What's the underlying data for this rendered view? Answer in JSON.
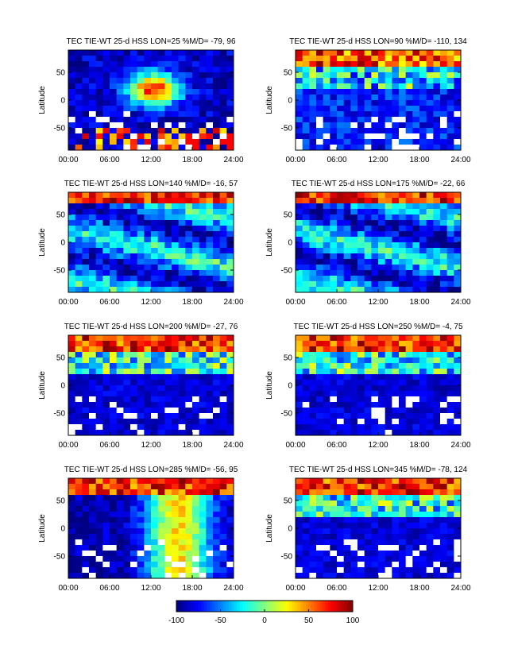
{
  "chart_data": {
    "type": "heatmap",
    "panels": [
      {
        "title": "TEC TIE-WT 25-d HSS LON=25 %M/D=  -79,  96",
        "ylabel": "Latitude",
        "xlabel": "",
        "pattern": "equatorial_crest_positive",
        "x_ticks": [
          "00:00",
          "06:00",
          "12:00",
          "18:00",
          "24:00"
        ],
        "y_ticks": [
          "50",
          "0",
          "-50"
        ],
        "xlim": [
          0,
          24
        ],
        "ylim": [
          -90,
          90
        ]
      },
      {
        "title": "TEC TIE-WT 25-d HSS LON=90 %M/D= -110,  134",
        "ylabel": "Latitude",
        "xlabel": "",
        "pattern": "mixed_high_north",
        "x_ticks": [
          "00:00",
          "06:00",
          "12:00",
          "18:00",
          "24:00"
        ],
        "y_ticks": [
          "50",
          "0",
          "-50"
        ],
        "xlim": [
          0,
          24
        ],
        "ylim": [
          -90,
          90
        ]
      },
      {
        "title": "TEC TIE-WT 25-d HSS LON=140 %M/D=  -16,  57",
        "ylabel": "Latitude",
        "xlabel": "",
        "pattern": "banded_mild",
        "x_ticks": [
          "00:00",
          "06:00",
          "12:00",
          "18:00",
          "24:00"
        ],
        "y_ticks": [
          "50",
          "0",
          "-50"
        ],
        "xlim": [
          0,
          24
        ],
        "ylim": [
          -90,
          90
        ]
      },
      {
        "title": "TEC TIE-WT 25-d HSS LON=175 %M/D=  -22,  66",
        "ylabel": "Latitude",
        "xlabel": "",
        "pattern": "banded_mild",
        "x_ticks": [
          "00:00",
          "06:00",
          "12:00",
          "18:00",
          "24:00"
        ],
        "y_ticks": [
          "50",
          "0",
          "-50"
        ],
        "xlim": [
          0,
          24
        ],
        "ylim": [
          -90,
          90
        ]
      },
      {
        "title": "TEC TIE-WT 25-d HSS LON=200 %M/D=  -27,  76",
        "ylabel": "Latitude",
        "xlabel": "",
        "pattern": "north_positive_south_gaps",
        "x_ticks": [
          "00:00",
          "06:00",
          "12:00",
          "18:00",
          "24:00"
        ],
        "y_ticks": [
          "50",
          "0",
          "-50"
        ],
        "xlim": [
          0,
          24
        ],
        "ylim": [
          -90,
          90
        ]
      },
      {
        "title": "TEC TIE-WT 25-d HSS LON=250 %M/D=   -4,  75",
        "ylabel": "Latitude",
        "xlabel": "",
        "pattern": "north_positive_south_gaps",
        "x_ticks": [
          "00:00",
          "06:00",
          "12:00",
          "18:00",
          "24:00"
        ],
        "y_ticks": [
          "50",
          "0",
          "-50"
        ],
        "xlim": [
          0,
          24
        ],
        "ylim": [
          -90,
          90
        ]
      },
      {
        "title": "TEC TIE-WT 25-d HSS LON=285 %M/D=  -56,  95",
        "ylabel": "Latitude",
        "xlabel": "",
        "pattern": "north_positive_afternoon",
        "x_ticks": [
          "00:00",
          "06:00",
          "12:00",
          "18:00",
          "24:00"
        ],
        "y_ticks": [
          "50",
          "0",
          "-50"
        ],
        "xlim": [
          0,
          24
        ],
        "ylim": [
          -90,
          90
        ]
      },
      {
        "title": "TEC TIE-WT 25-d HSS LON=345 %M/D=  -78,  124",
        "ylabel": "Latitude",
        "xlabel": "",
        "pattern": "north_positive_south_gaps",
        "x_ticks": [
          "00:00",
          "06:00",
          "12:00",
          "18:00",
          "24:00"
        ],
        "y_ticks": [
          "50",
          "0",
          "-50"
        ],
        "xlim": [
          0,
          24
        ],
        "ylim": [
          -90,
          90
        ]
      }
    ],
    "grid": {
      "columns": 24,
      "rows": 18
    },
    "colorbar": {
      "min": -100,
      "max": 100,
      "ticks": [
        "-100",
        "-50",
        "0",
        "50",
        "100"
      ],
      "colormap": "jet"
    },
    "colors": {
      "missing": "#ffffff",
      "frame": "#000000"
    }
  }
}
